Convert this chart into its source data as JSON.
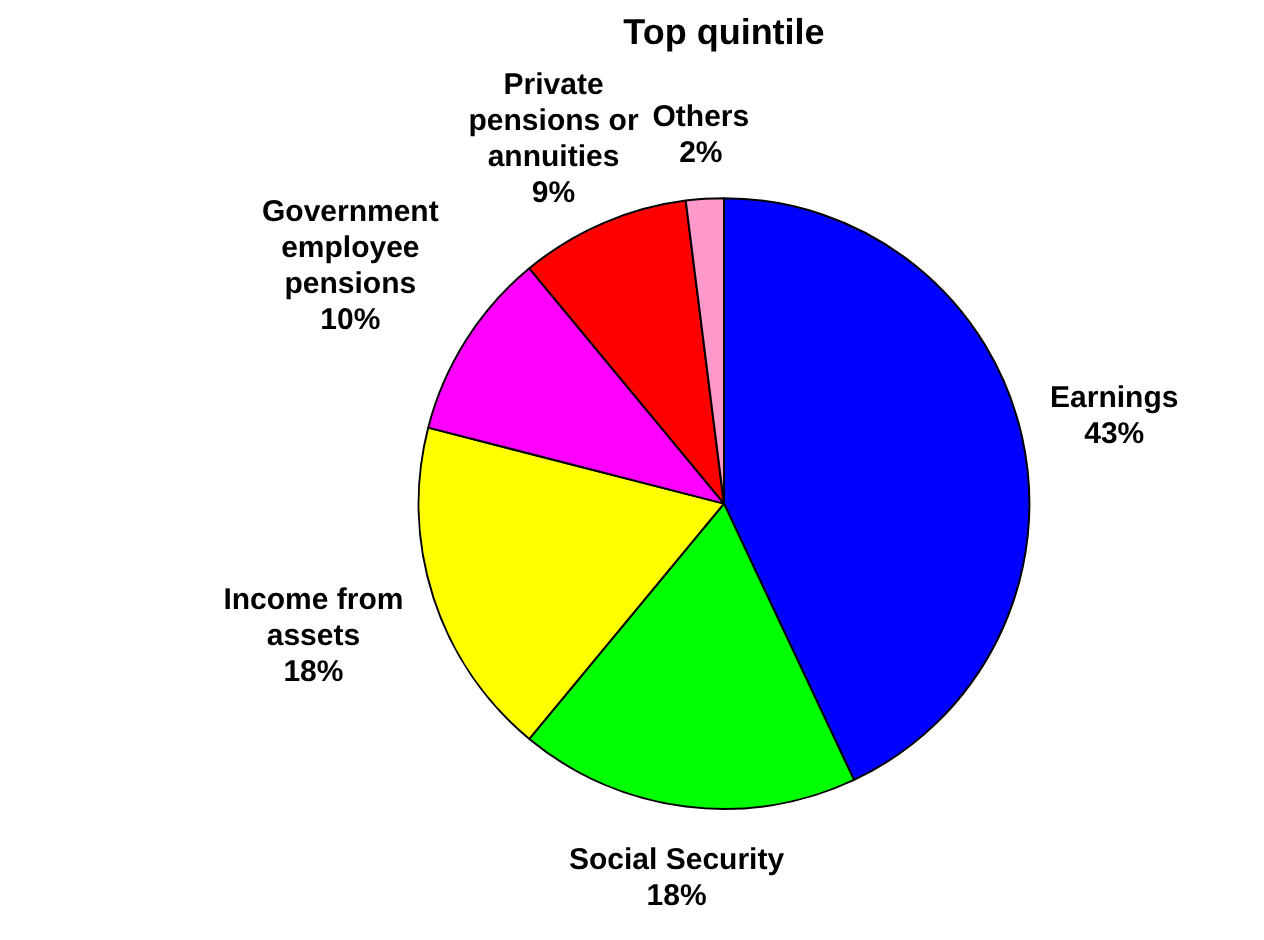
{
  "chart_data": {
    "type": "pie",
    "title": "Top quintile",
    "categories": [
      "Earnings",
      "Social Security",
      "Income from assets",
      "Government employee pensions",
      "Private pensions or annuities",
      "Others"
    ],
    "values": [
      43,
      18,
      18,
      10,
      9,
      2
    ],
    "colors": [
      "#0000ff",
      "#00ff00",
      "#ffff00",
      "#ff00ff",
      "#ff0000",
      "#ff99cc"
    ],
    "value_labels": [
      "43%",
      "18%",
      "18%",
      "10%",
      "9%",
      "2%"
    ]
  }
}
